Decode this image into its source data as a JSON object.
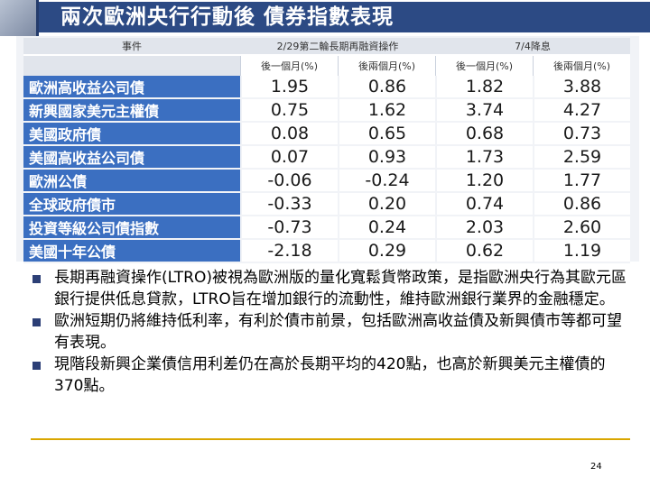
{
  "title": "兩次歐洲央行行動後 債券指數表現",
  "table": {
    "header_event": "事件",
    "header_group1": "2/29第二輪長期再融資操作",
    "header_group2": "7/4降息",
    "sub_headers": [
      "後一個月(%)",
      "後兩個月(%)",
      "後一個月(%)",
      "後兩個月(%)"
    ],
    "rows": [
      {
        "name": "歐洲高收益公司債",
        "values": [
          "1.95",
          "0.86",
          "1.82",
          "3.88"
        ]
      },
      {
        "name": "新興國家美元主權債",
        "values": [
          "0.75",
          "1.62",
          "3.74",
          "4.27"
        ]
      },
      {
        "name": "美國政府債",
        "values": [
          "0.08",
          "0.65",
          "0.68",
          "0.73"
        ]
      },
      {
        "name": "美國高收益公司債",
        "values": [
          "0.07",
          "0.93",
          "1.73",
          "2.59"
        ]
      },
      {
        "name": "歐洲公債",
        "values": [
          "-0.06",
          "-0.24",
          "1.20",
          "1.77"
        ]
      },
      {
        "name": "全球政府債市",
        "values": [
          "-0.33",
          "0.20",
          "0.74",
          "0.86"
        ]
      },
      {
        "name": "投資等級公司債指數",
        "values": [
          "-0.73",
          "0.24",
          "2.03",
          "2.60"
        ]
      },
      {
        "name": "美國十年公債",
        "values": [
          "-2.18",
          "0.29",
          "0.62",
          "1.19"
        ]
      }
    ]
  },
  "bullets": [
    "長期再融資操作(LTRO)被視為歐洲版的量化寬鬆貨幣政策，是指歐洲央行為其歐元區銀行提供低息貸款，LTRO旨在增加銀行的流動性，維持歐洲銀行業界的金融穩定。",
    "歐洲短期仍將維持低利率，有利於債市前景，包括歐洲高收益債及新興債市等都可望有表現。",
    "現階段新興企業債信用利差仍在高於長期平均的420點，也高於新興美元主權債的370點。"
  ],
  "page_number": "24"
}
